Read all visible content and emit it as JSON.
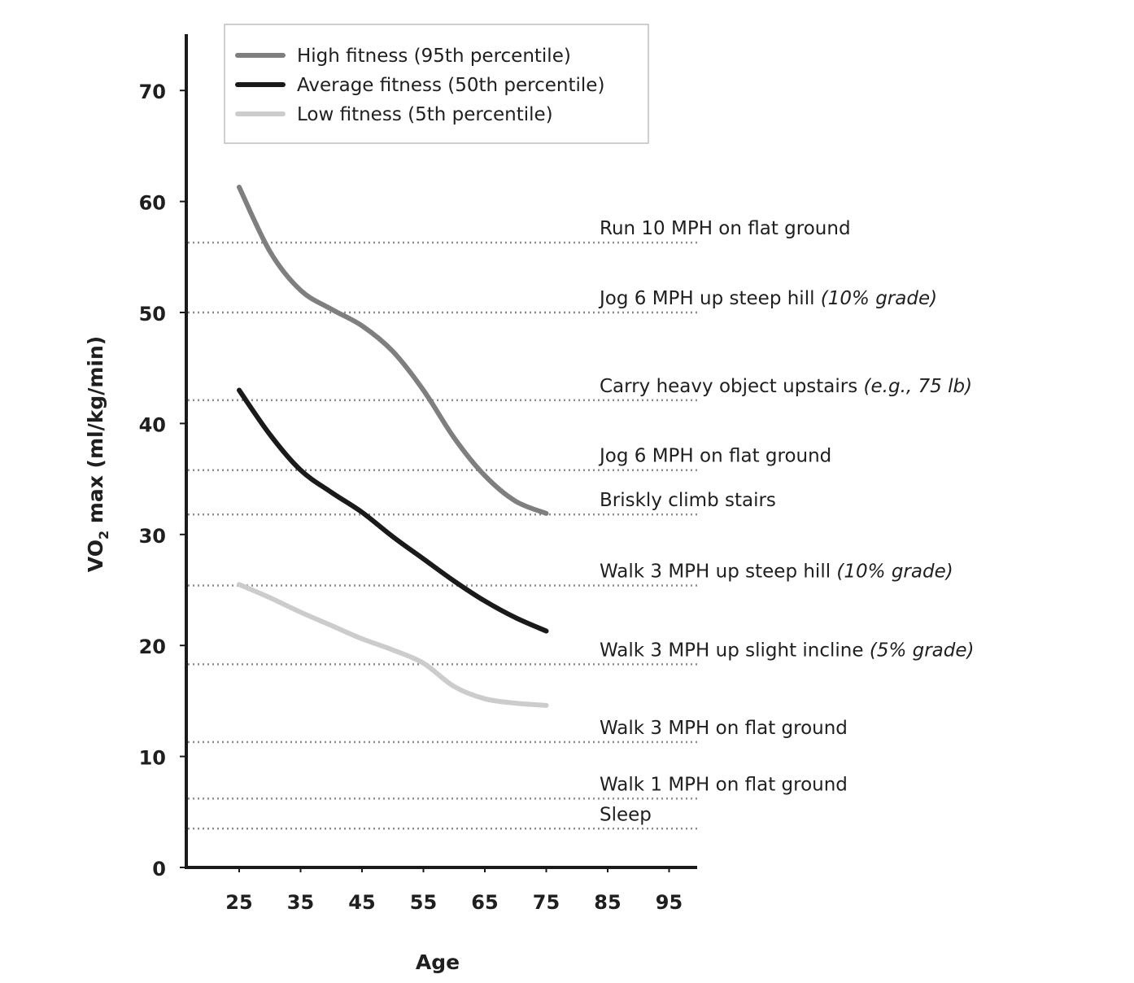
{
  "chart_data": {
    "type": "line",
    "xlabel": "Age",
    "ylabel": {
      "prefix": "VO",
      "subscript": "2",
      "suffix": " max (ml/kg/min)"
    },
    "xlim": [
      17,
      99
    ],
    "ylim": [
      0,
      75
    ],
    "x_ticks": [
      "25",
      "35",
      "45",
      "55",
      "65",
      "75",
      "85",
      "95"
    ],
    "x_tick_values": [
      25,
      35,
      45,
      55,
      65,
      75,
      85,
      95
    ],
    "y_ticks": [
      "0",
      "10",
      "20",
      "30",
      "40",
      "50",
      "60",
      "70"
    ],
    "y_tick_values": [
      0,
      10,
      20,
      30,
      40,
      50,
      60,
      70
    ],
    "series": [
      {
        "name": "High fitness (95th percentile)",
        "color": "#7f7f7f",
        "points": [
          [
            25,
            61.3
          ],
          [
            30,
            55.5
          ],
          [
            35,
            52.0
          ],
          [
            40,
            50.3
          ],
          [
            45,
            48.8
          ],
          [
            50,
            46.5
          ],
          [
            55,
            43.0
          ],
          [
            60,
            38.7
          ],
          [
            65,
            35.3
          ],
          [
            70,
            33.0
          ],
          [
            75,
            31.9
          ]
        ]
      },
      {
        "name": "Average fitness (50th percentile)",
        "color": "#1a1a1a",
        "points": [
          [
            25,
            43.0
          ],
          [
            30,
            39.0
          ],
          [
            35,
            35.8
          ],
          [
            40,
            33.8
          ],
          [
            45,
            32.0
          ],
          [
            50,
            29.8
          ],
          [
            55,
            27.8
          ],
          [
            60,
            25.8
          ],
          [
            65,
            24.0
          ],
          [
            70,
            22.5
          ],
          [
            75,
            21.3
          ]
        ]
      },
      {
        "name": "Low fitness (5th percentile)",
        "color": "#cccccc",
        "points": [
          [
            25,
            25.5
          ],
          [
            30,
            24.3
          ],
          [
            35,
            23.0
          ],
          [
            40,
            21.8
          ],
          [
            45,
            20.6
          ],
          [
            50,
            19.6
          ],
          [
            55,
            18.4
          ],
          [
            60,
            16.3
          ],
          [
            65,
            15.2
          ],
          [
            70,
            14.8
          ],
          [
            75,
            14.6
          ]
        ]
      }
    ],
    "reference_lines": [
      {
        "y": 56.3,
        "label": "Run 10 MPH on flat ground",
        "note": ""
      },
      {
        "y": 50.0,
        "label": "Jog 6 MPH up steep hill ",
        "note": "(10% grade)"
      },
      {
        "y": 42.1,
        "label": "Carry heavy object upstairs ",
        "note": "(e.g., 75 lb)"
      },
      {
        "y": 35.8,
        "label": "Jog 6 MPH on flat ground",
        "note": ""
      },
      {
        "y": 31.8,
        "label": "Briskly climb stairs",
        "note": ""
      },
      {
        "y": 25.4,
        "label": "Walk 3 MPH up steep hill ",
        "note": "(10% grade)"
      },
      {
        "y": 18.3,
        "label": "Walk 3 MPH up slight incline ",
        "note": "(5% grade)"
      },
      {
        "y": 11.3,
        "label": "Walk 3 MPH on flat ground",
        "note": ""
      },
      {
        "y": 6.2,
        "label": "Walk 1 MPH on flat ground",
        "note": ""
      },
      {
        "y": 3.5,
        "label": "Sleep",
        "note": ""
      }
    ],
    "legend_position": "top"
  }
}
